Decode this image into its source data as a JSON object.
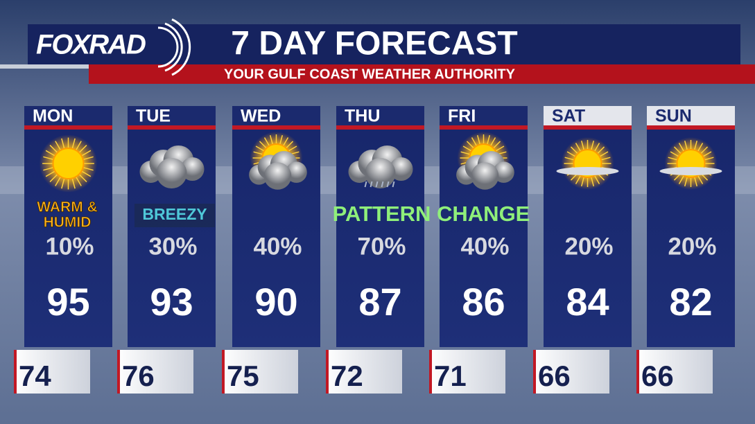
{
  "header": {
    "logo": "FOXRAD",
    "title": "7 DAY FORECAST",
    "subtitle": "YOUR GULF COAST WEATHER AUTHORITY"
  },
  "days": [
    {
      "name": "MON",
      "precip": "10%",
      "high": 95,
      "low": 74
    },
    {
      "name": "TUE",
      "precip": "30%",
      "high": 93,
      "low": 76
    },
    {
      "name": "WED",
      "precip": "40%",
      "high": 90,
      "low": 75
    },
    {
      "name": "THU",
      "precip": "70%",
      "high": 87,
      "low": 72
    },
    {
      "name": "FRI",
      "precip": "40%",
      "high": 86,
      "low": 71
    },
    {
      "name": "SAT",
      "precip": "20%",
      "high": 84,
      "low": 66
    },
    {
      "name": "SUN",
      "precip": "20%",
      "high": 82,
      "low": 66
    }
  ],
  "notes": {
    "warm": [
      "WARM &",
      "HUMID"
    ],
    "breezy": "BREEZY",
    "pattern": "PATTERN CHANGE"
  }
}
